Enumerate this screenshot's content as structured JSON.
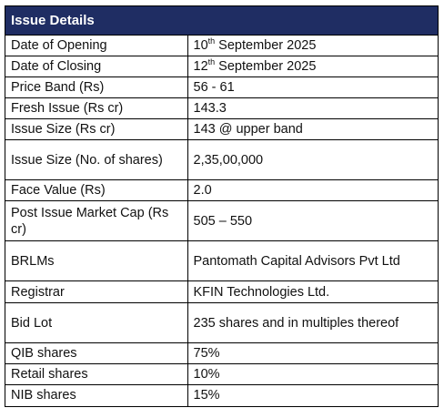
{
  "header": {
    "title": "Issue Details"
  },
  "rows": [
    {
      "label": "Date of Opening",
      "value": "10th September 2025",
      "value_prefix": "10",
      "value_sup": "th",
      "value_suffix": " September 2025"
    },
    {
      "label": "Date of Closing",
      "value": "12th September 2025",
      "value_prefix": "12",
      "value_sup": "th",
      "value_suffix": " September 2025"
    },
    {
      "label": "Price Band (Rs)",
      "value": "56 - 61"
    },
    {
      "label": "Fresh Issue (Rs cr)",
      "value": "143.3"
    },
    {
      "label": "Issue Size (Rs cr)",
      "value": "143 @ upper band"
    },
    {
      "label": "Issue Size (No. of shares)",
      "value": "2,35,00,000"
    },
    {
      "label": "Face Value (Rs)",
      "value": "2.0"
    },
    {
      "label": "Post Issue Market Cap (Rs cr)",
      "value": "505 – 550"
    },
    {
      "label": "BRLMs",
      "value": "Pantomath Capital Advisors Pvt Ltd"
    },
    {
      "label": "Registrar",
      "value": "KFIN Technologies Ltd."
    },
    {
      "label": "Bid Lot",
      "value": "235 shares and in multiples thereof"
    },
    {
      "label": "QIB shares",
      "value": "75%"
    },
    {
      "label": "Retail shares",
      "value": "10%"
    },
    {
      "label": "NIB shares",
      "value": "15%"
    }
  ],
  "colors": {
    "header_bg": "#1f2d63",
    "header_text": "#ffffff",
    "border": "#000000"
  }
}
